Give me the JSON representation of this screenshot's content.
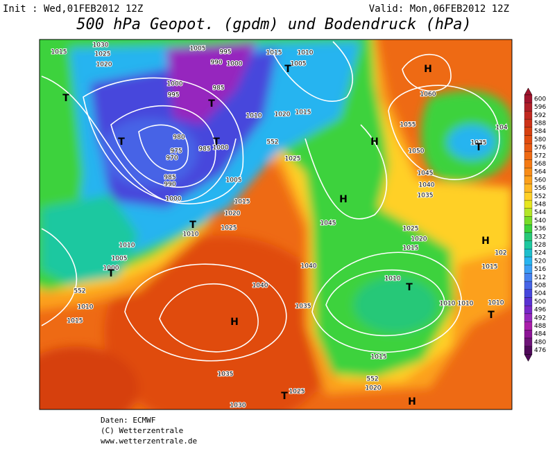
{
  "header": {
    "init": "Init : Wed,01FEB2012 12Z",
    "valid": "Valid: Mon,06FEB2012 12Z",
    "title": "500 hPa Geopot. (gpdm) und Bodendruck (hPa)"
  },
  "colorbar": {
    "levels": [
      600,
      596,
      592,
      588,
      584,
      580,
      576,
      572,
      568,
      564,
      560,
      556,
      552,
      548,
      544,
      540,
      536,
      532,
      528,
      524,
      520,
      516,
      512,
      508,
      504,
      500,
      496,
      492,
      488,
      484,
      480,
      476
    ],
    "colors": [
      "#a0142d",
      "#b01e28",
      "#c02820",
      "#cc3218",
      "#d64010",
      "#e04c10",
      "#e85a14",
      "#ee6a14",
      "#f47a14",
      "#f88c18",
      "#fca01c",
      "#ffb824",
      "#ffd028",
      "#e6e620",
      "#b4e628",
      "#78dc28",
      "#3cd23c",
      "#28c878",
      "#1ec8a0",
      "#1ebecc",
      "#28b4f0",
      "#3c9ff5",
      "#4682f0",
      "#4664e6",
      "#4646dc",
      "#5a32d2",
      "#7828c8",
      "#9628be",
      "#aa1eaa",
      "#8c1496",
      "#6e1478",
      "#500a5a"
    ]
  },
  "map_labels": [
    "1015",
    "1030",
    "1025",
    "1020",
    "1005",
    "995",
    "990",
    "1000",
    "1015",
    "1010",
    "1005",
    "T",
    "1000",
    "995",
    "985",
    "T",
    "T",
    "1010",
    "1020",
    "1015",
    "980",
    "975",
    "970",
    "985",
    "T",
    "1000",
    "T",
    "985",
    "990",
    "1005",
    "1000",
    "552",
    "1025",
    "H",
    "1015",
    "1020",
    "1025",
    "T",
    "1010",
    "H",
    "1045",
    "1010",
    "1005",
    "1000",
    "T",
    "1040",
    "1040",
    "552",
    "1010",
    "1015",
    "H",
    "1035",
    "1035",
    "1030",
    "T",
    "1025",
    "1015",
    "552",
    "1020",
    "H",
    "T",
    "1010",
    "1010",
    "1010",
    "1010",
    "T",
    "1015",
    "H",
    "1020",
    "1015",
    "1025",
    "1040",
    "1035",
    "1045",
    "1050",
    "1055",
    "1060",
    "H",
    "1035",
    "T",
    "104",
    "102"
  ],
  "footer": [
    "Daten: ECMWF",
    "(C) Wetterzentrale",
    "www.wetterzentrale.de"
  ]
}
